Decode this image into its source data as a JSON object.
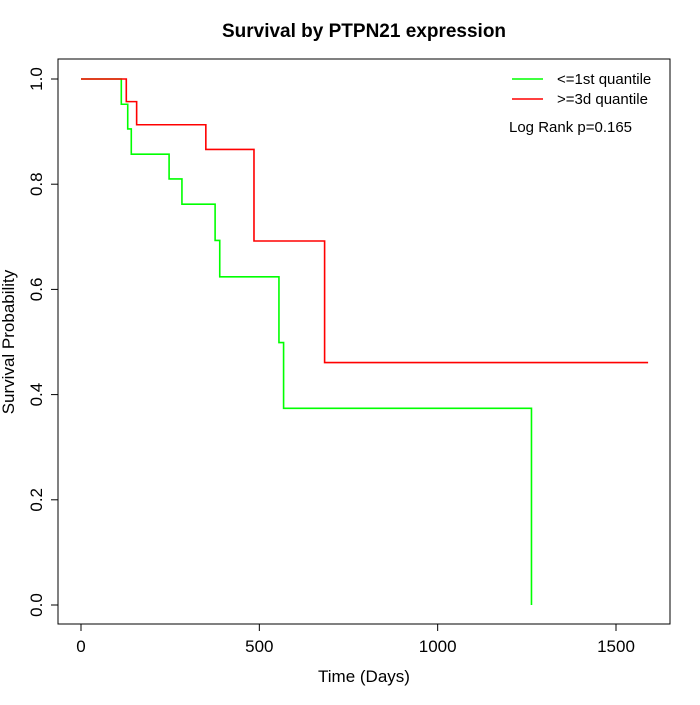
{
  "chart_data": {
    "type": "line",
    "title": "Survival by PTPN21 expression",
    "xlabel": "Time (Days)",
    "ylabel": "Survival Probability",
    "xlim": [
      0,
      1600
    ],
    "ylim": [
      0,
      1.0
    ],
    "x_ticks": [
      0,
      500,
      1000,
      1500
    ],
    "y_ticks": [
      0.0,
      0.2,
      0.4,
      0.6,
      0.8,
      1.0
    ],
    "x_tick_labels": [
      "0",
      "500",
      "1000",
      "1500"
    ],
    "y_tick_labels": [
      "0.0",
      "0.2",
      "0.4",
      "0.6",
      "0.8",
      "1.0"
    ],
    "grid": false,
    "legend_position": "top-right",
    "annotation": "Log Rank p=0.165",
    "series": [
      {
        "name": "<=1st quantile",
        "color": "#00ff00",
        "step_points": [
          [
            0,
            1.0
          ],
          [
            113,
            0.952
          ],
          [
            131,
            0.905
          ],
          [
            141,
            0.857
          ],
          [
            247,
            0.81
          ],
          [
            283,
            0.762
          ],
          [
            376,
            0.693
          ],
          [
            389,
            0.624
          ],
          [
            555,
            0.499
          ],
          [
            568,
            0.374
          ],
          [
            1263,
            0.0
          ]
        ]
      },
      {
        "name": ">=3d quantile",
        "color": "#ff0000",
        "step_points": [
          [
            0,
            1.0
          ],
          [
            127,
            0.957
          ],
          [
            156,
            0.913
          ],
          [
            350,
            0.866
          ],
          [
            485,
            0.692
          ],
          [
            683,
            0.461
          ],
          [
            1590,
            0.461
          ]
        ]
      }
    ]
  }
}
